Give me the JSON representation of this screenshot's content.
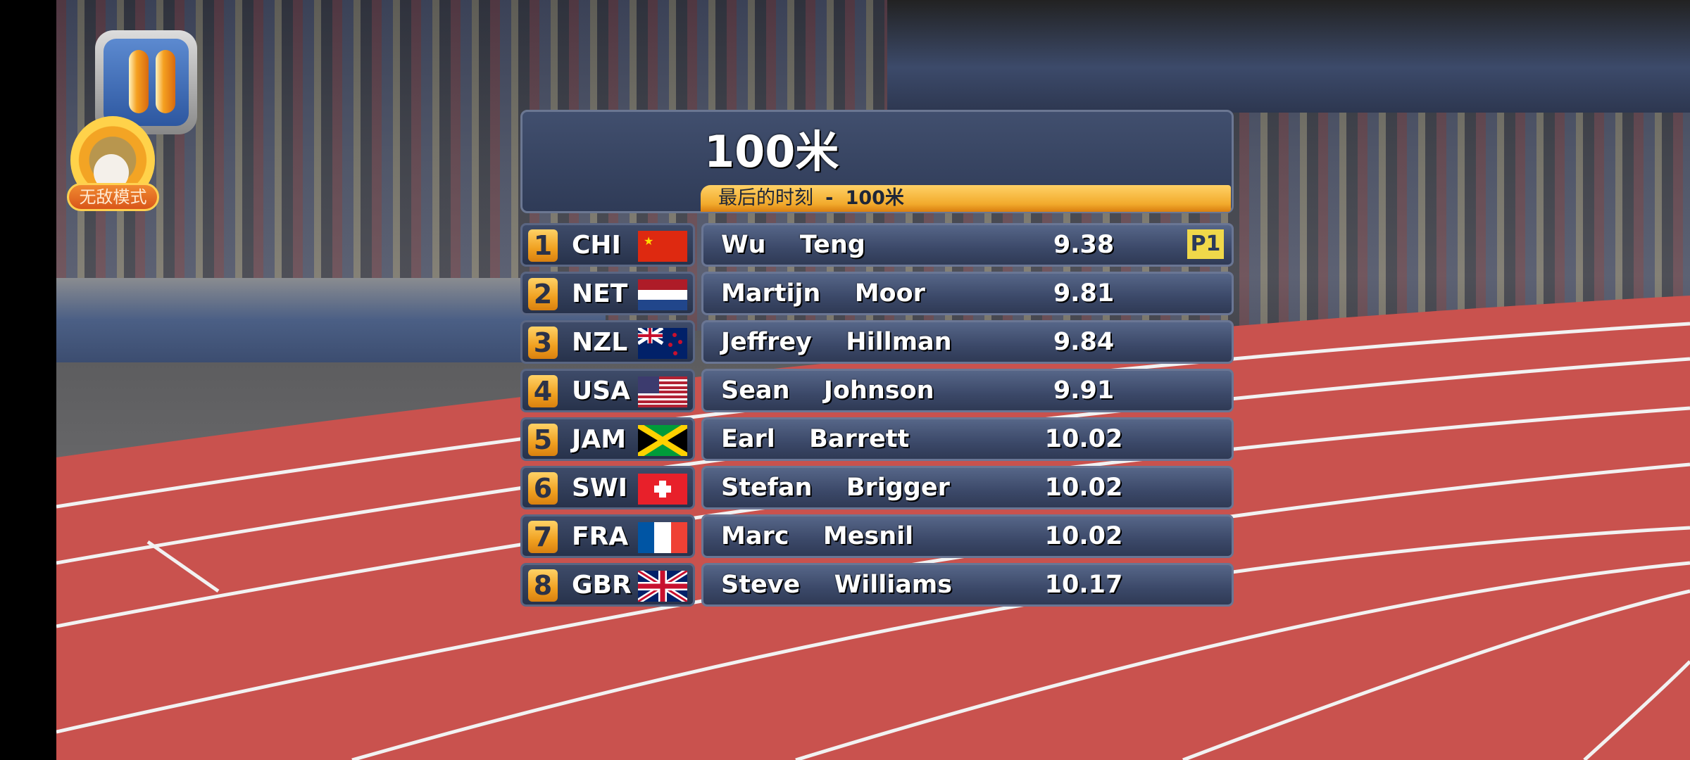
{
  "hud": {
    "pause_icon": "pause-icon",
    "invincible_label": "无敌模式"
  },
  "board": {
    "title": "100米",
    "subtitle_prefix": "最后的时刻",
    "subtitle_sep": "-",
    "subtitle_event": "100米",
    "results": [
      {
        "rank": "1",
        "country": "CHI",
        "flag": "china",
        "name": "Wu  Teng",
        "time": "9.38",
        "tag": "P1"
      },
      {
        "rank": "2",
        "country": "NET",
        "flag": "netherlands",
        "name": "Martijn  Moor",
        "time": "9.81"
      },
      {
        "rank": "3",
        "country": "NZL",
        "flag": "new-zealand",
        "name": "Jeffrey  Hillman",
        "time": "9.84"
      },
      {
        "rank": "4",
        "country": "USA",
        "flag": "usa",
        "name": "Sean  Johnson",
        "time": "9.91"
      },
      {
        "rank": "5",
        "country": "JAM",
        "flag": "jamaica",
        "name": "Earl  Barrett",
        "time": "10.02"
      },
      {
        "rank": "6",
        "country": "SWI",
        "flag": "switzerland",
        "name": "Stefan  Brigger",
        "time": "10.02"
      },
      {
        "rank": "7",
        "country": "FRA",
        "flag": "france",
        "name": "Marc  Mesnil",
        "time": "10.02"
      },
      {
        "rank": "8",
        "country": "GBR",
        "flag": "uk",
        "name": "Steve  Williams",
        "time": "10.17"
      }
    ]
  },
  "colors": {
    "track": "#c9524e",
    "panel": "#34405c",
    "accent": "#f2ab2d"
  }
}
